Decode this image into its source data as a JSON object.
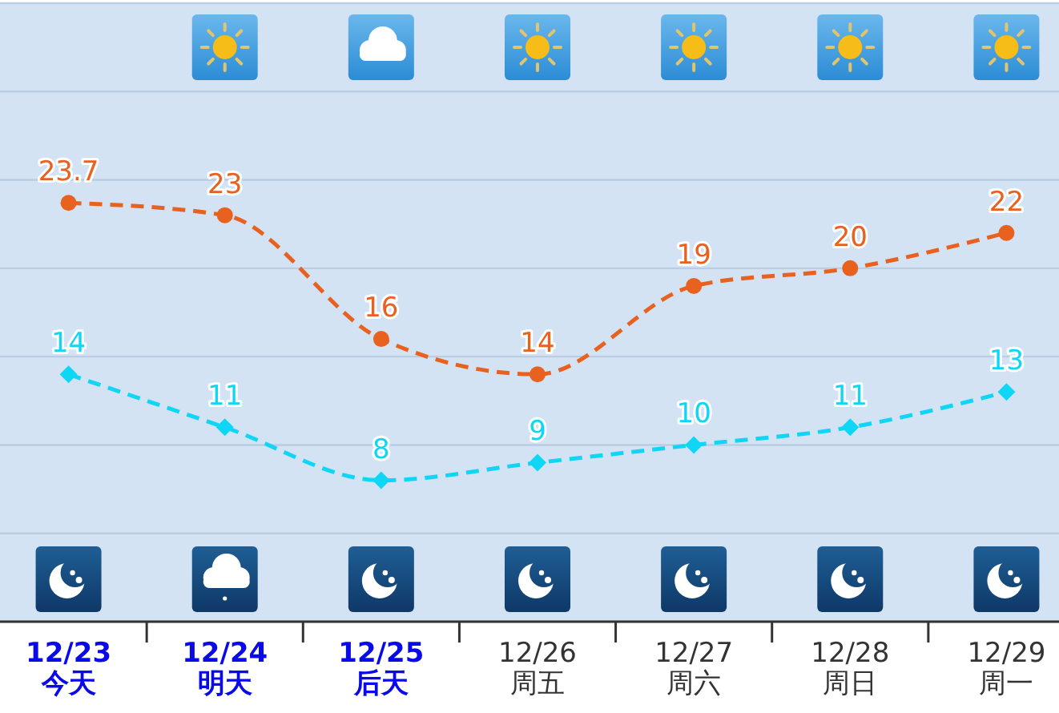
{
  "chart_data": {
    "type": "line",
    "categories": [
      "12/23\n今天",
      "12/24\n明天",
      "12/25\n后天",
      "12/26\n周五",
      "12/27\n周六",
      "12/28\n周日",
      "12/29\n周一"
    ],
    "series": [
      {
        "color": "#e9611f",
        "values": [
          23.7,
          23,
          16,
          14,
          19,
          20,
          22
        ],
        "marker": "circle",
        "line_style": "dashed"
      },
      {
        "color": "#10d6f6",
        "values": [
          14,
          11,
          8,
          9,
          10,
          11,
          13
        ],
        "marker": "diamond",
        "line_style": "dashed"
      }
    ],
    "ylim": [
      0,
      35
    ],
    "grid": "y",
    "tick_labels": "x",
    "data_labels": true
  }
}
